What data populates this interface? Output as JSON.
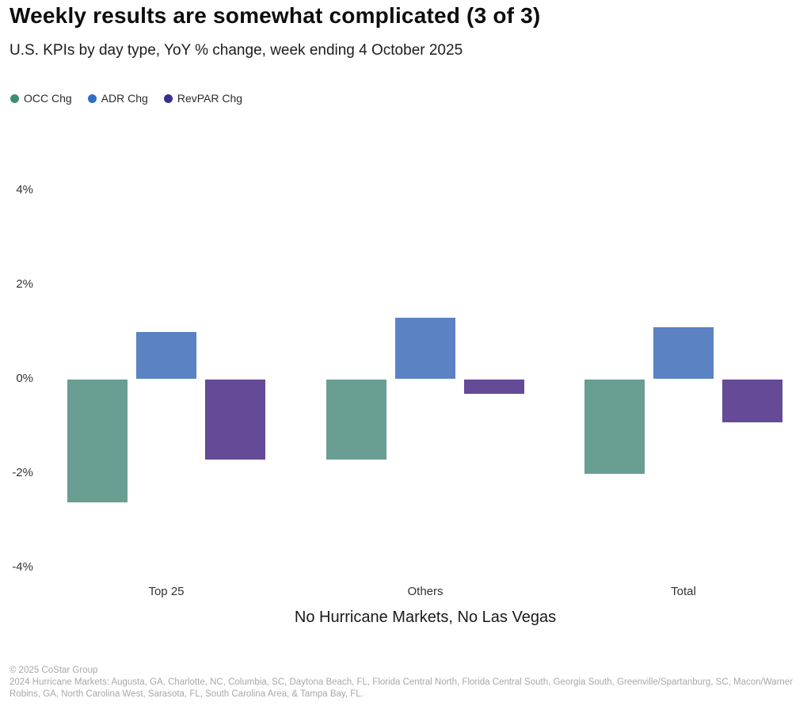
{
  "header": {
    "title": "Weekly results are somewhat complicated (3 of 3)",
    "subtitle": "U.S. KPIs by day type, YoY % change, week ending 4 October 2025"
  },
  "chart_data": {
    "type": "bar",
    "title": "Weekly results are somewhat complicated (3 of 3)",
    "subtitle": "U.S. KPIs by day type, YoY % change, week ending 4 October 2025",
    "categories": [
      "Top 25",
      "Others",
      "Total"
    ],
    "series": [
      {
        "name": "OCC Chg",
        "values": [
          -2.6,
          -1.7,
          -2.0
        ],
        "bar_color": "#699e93",
        "legend_color": "#3d8c75"
      },
      {
        "name": "ADR Chg",
        "values": [
          1.0,
          1.3,
          1.1
        ],
        "bar_color": "#5b82c3",
        "legend_color": "#2d6fc4"
      },
      {
        "name": "RevPAR Chg",
        "values": [
          -1.7,
          -0.3,
          -0.9
        ],
        "bar_color": "#654a97",
        "legend_color": "#372f91"
      }
    ],
    "xlabel": "No Hurricane Markets, No Las Vegas",
    "ylabel": "",
    "ylim": [
      -4,
      4
    ],
    "yticks": [
      4,
      2,
      0,
      -2,
      -4
    ],
    "ytick_labels": [
      "4%",
      "2%",
      "0%",
      "-2%",
      "-4%"
    ],
    "grid": false,
    "legend_position": "top-left",
    "unit": "YoY % change"
  },
  "footer": {
    "copyright": "© 2025 CoStar Group",
    "note": "2024 Hurricane Markets: Augusta, GA, Charlotte, NC, Columbia, SC, Daytona Beach, FL, Florida Central North, Florida Central South, Georgia South, Greenville/Spartanburg, SC, Macon/Warner Robins, GA, North Carolina West, Sarasota, FL, South Carolina Area, & Tampa Bay, FL."
  }
}
